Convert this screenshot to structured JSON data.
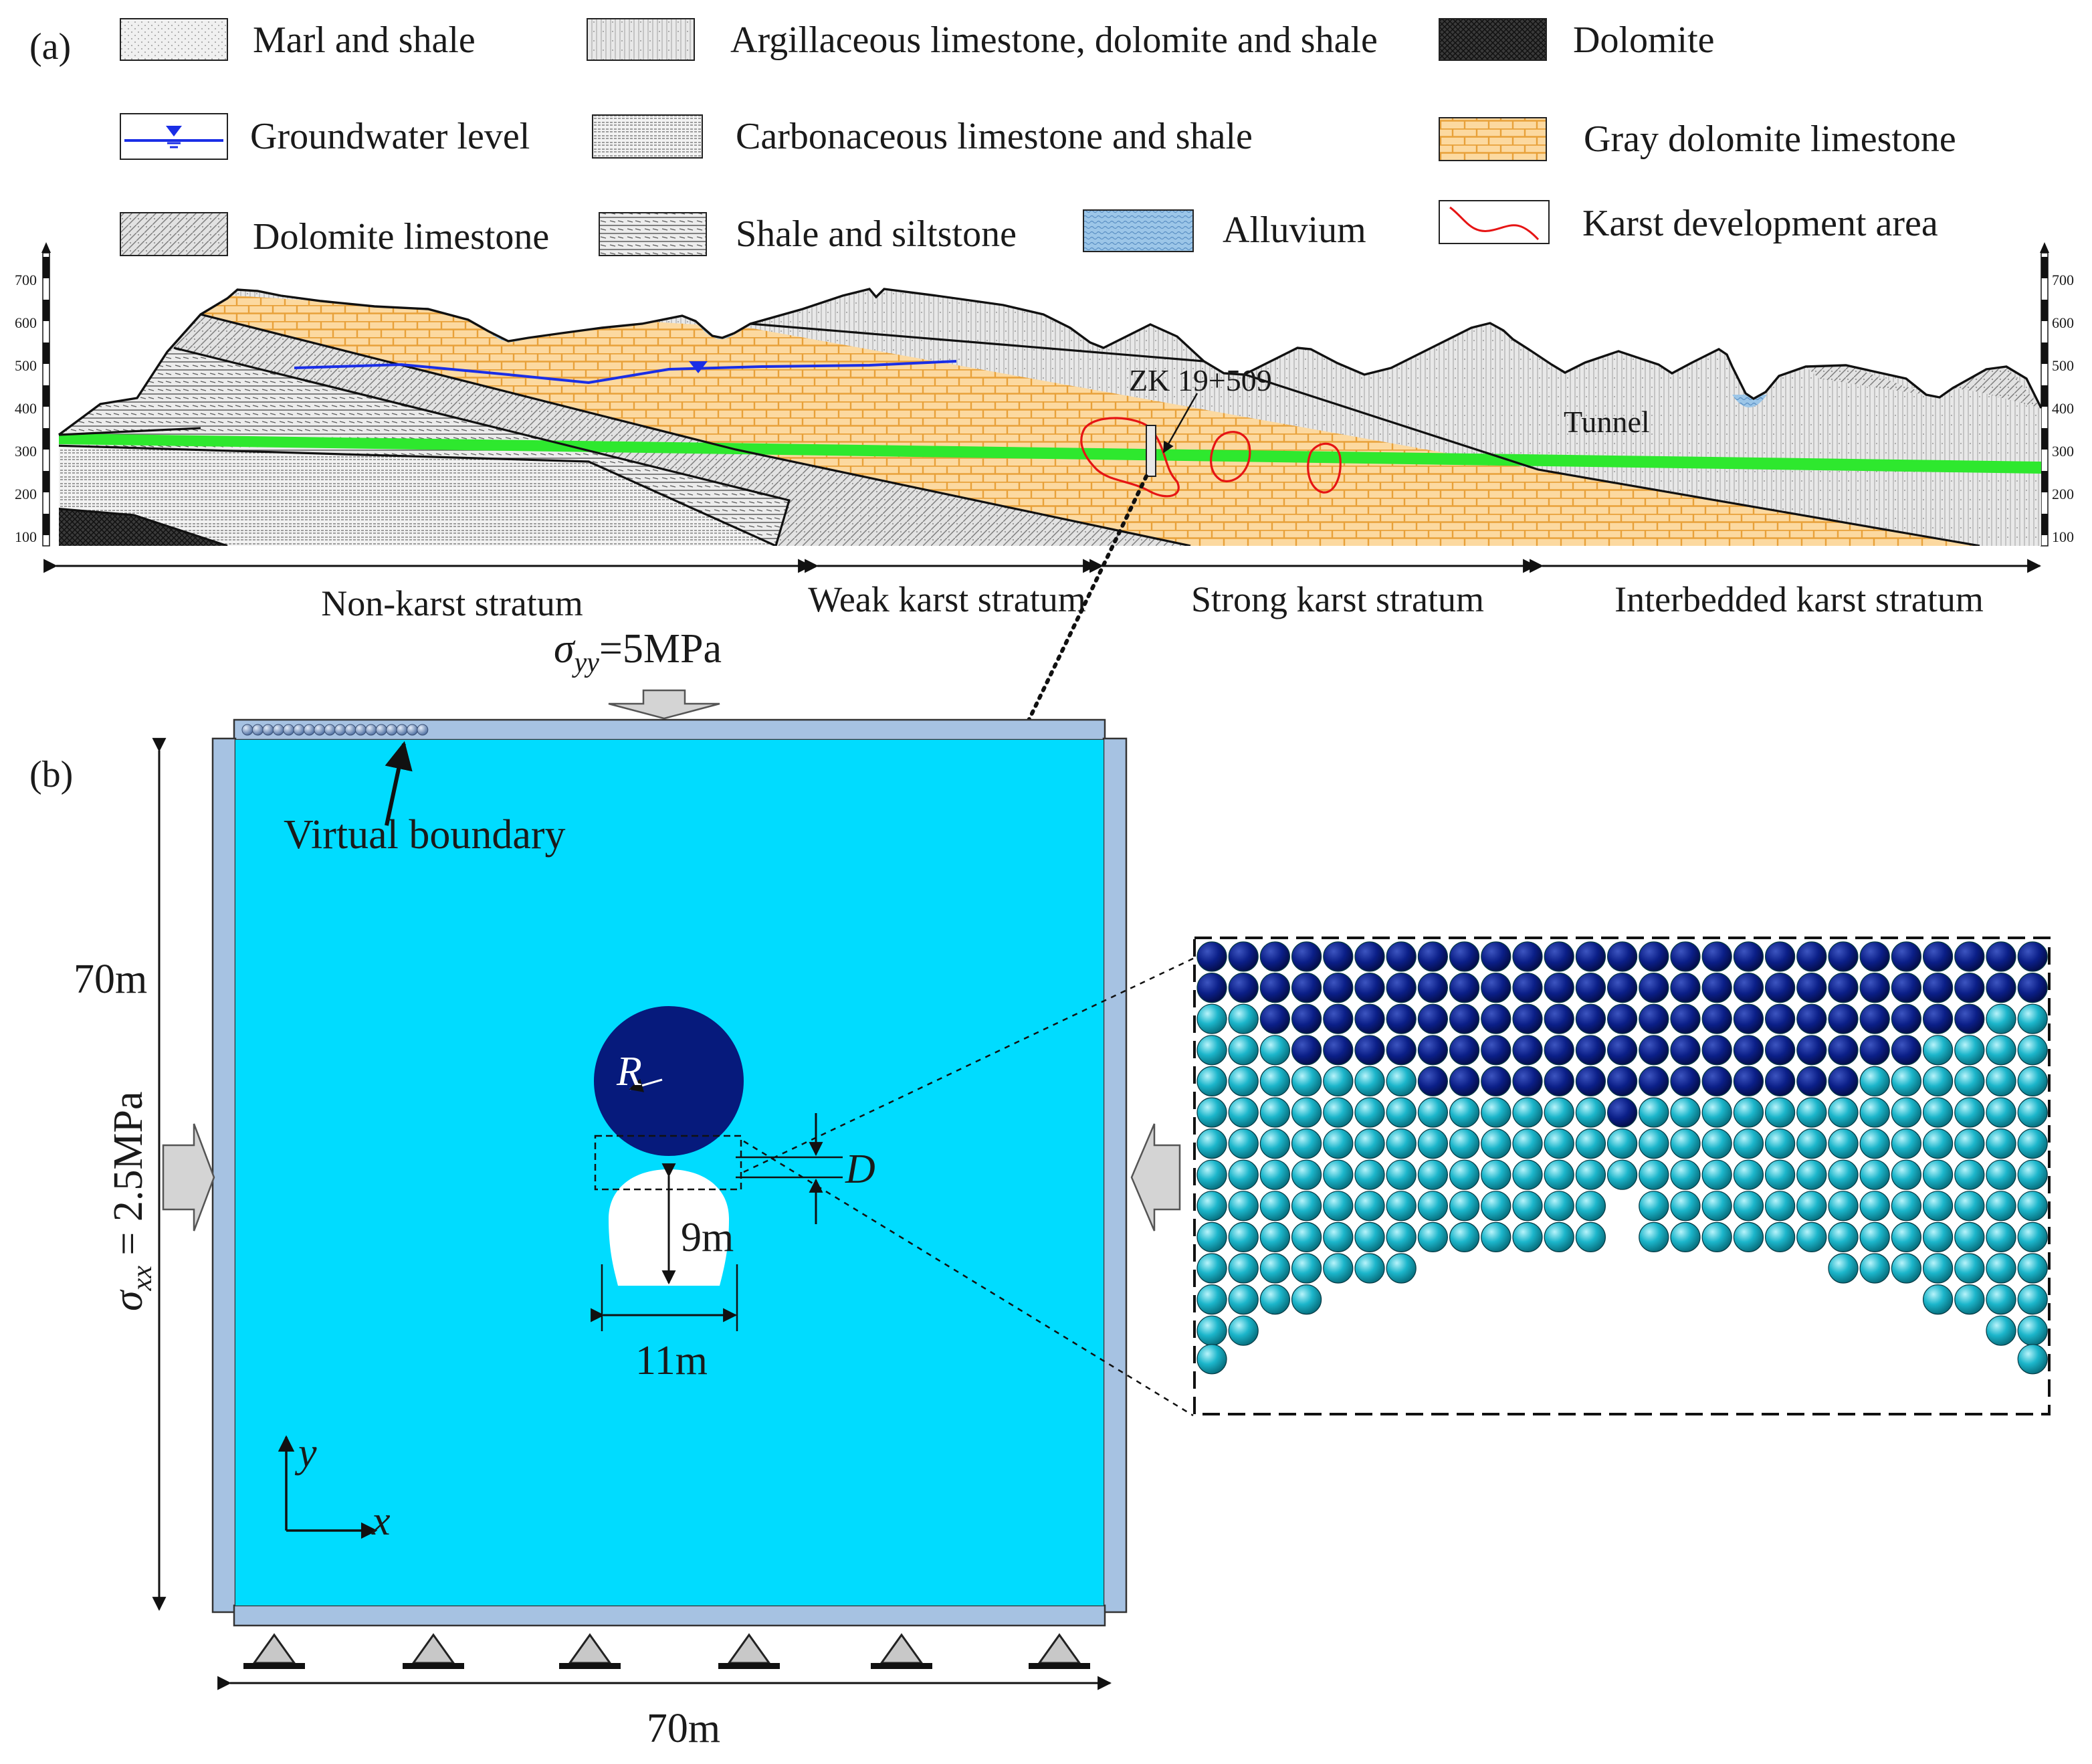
{
  "panel_a": {
    "label": "(a)",
    "legend": [
      {
        "key": "marl_shale",
        "label": "Marl and shale"
      },
      {
        "key": "argillaceous",
        "label": "Argillaceous limestone, dolomite and shale"
      },
      {
        "key": "dolomite",
        "label": "Dolomite"
      },
      {
        "key": "groundwater",
        "label": "Groundwater level"
      },
      {
        "key": "carbonaceous",
        "label": "Carbonaceous limestone and shale"
      },
      {
        "key": "gray_dolomite",
        "label": "Gray dolomite limestone"
      },
      {
        "key": "dolomite_limestone",
        "label": "Dolomite limestone"
      },
      {
        "key": "shale_siltstone",
        "label": "Shale and siltstone"
      },
      {
        "key": "alluvium",
        "label": "Alluvium"
      },
      {
        "key": "karst_area",
        "label": "Karst development area"
      }
    ],
    "elevation_ticks": [
      "700",
      "600",
      "500",
      "400",
      "300",
      "200",
      "100"
    ],
    "borehole_label": "ZK 19+509",
    "tunnel_label": "Tunnel",
    "zones": [
      "Non-karst stratum",
      "Weak karst stratum",
      "Strong karst stratum",
      "Interbedded karst stratum"
    ]
  },
  "panel_b": {
    "label": "(b)",
    "sigma_yy": {
      "symbol": "σ",
      "sub": "yy",
      "value": "=5MPa"
    },
    "sigma_xx": {
      "symbol": "σ",
      "sub": "xx",
      "value": " = 2.5MPa"
    },
    "virtual_boundary": "Virtual boundary",
    "height_dim": "70m",
    "width_dim": "70m",
    "cavity_radius": "R",
    "distance_label": "D",
    "tunnel_height": "9m",
    "tunnel_width": "11m",
    "axis_x": "x",
    "axis_y": "y"
  },
  "colors": {
    "model_domain": "#00dcff",
    "karst_cavity": "#061a7c",
    "rock_particle": "#14b4c8",
    "boundary_wall": "#a6c2e2",
    "tunnel_line": "#2ee82e",
    "gray_dolomite_fill": "#fcd9a0",
    "groundwater_line": "#1a2ee6",
    "karst_outline": "#e61414"
  }
}
